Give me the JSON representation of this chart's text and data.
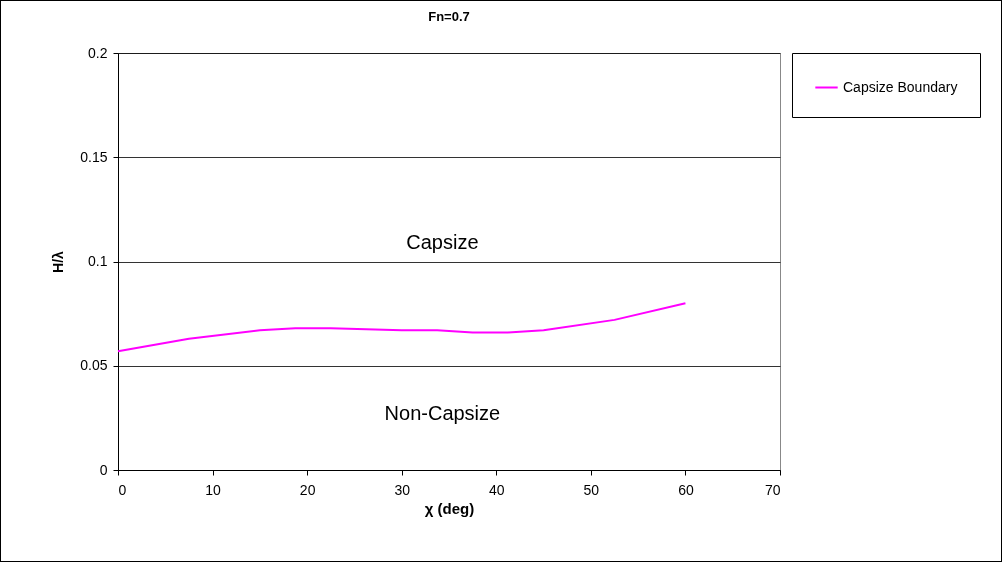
{
  "chart_data": {
    "type": "line",
    "title": "Fn=0.7",
    "xlabel": "χ (deg)",
    "ylabel": "H/λ",
    "series": [
      {
        "name": "Capsize Boundary",
        "color": "#ff00ff",
        "x": [
          0,
          7.5,
          15,
          18.75,
          22.5,
          30,
          33.75,
          37.5,
          41.25,
          45,
          52.5,
          60
        ],
        "values": [
          0.057,
          0.063,
          0.067,
          0.068,
          0.068,
          0.067,
          0.067,
          0.066,
          0.066,
          0.067,
          0.072,
          0.08
        ]
      }
    ],
    "xlim": [
      0,
      70
    ],
    "xticks": [
      0,
      10,
      20,
      30,
      40,
      50,
      60,
      70
    ],
    "ylim": [
      0,
      0.2
    ],
    "yticks": [
      0,
      0.05,
      0.1,
      0.15,
      0.2
    ],
    "annotations": [
      "Capsize",
      "Non-Capsize"
    ],
    "grid": "y",
    "legend": "right",
    "marker": "none",
    "line_style": "solid"
  }
}
